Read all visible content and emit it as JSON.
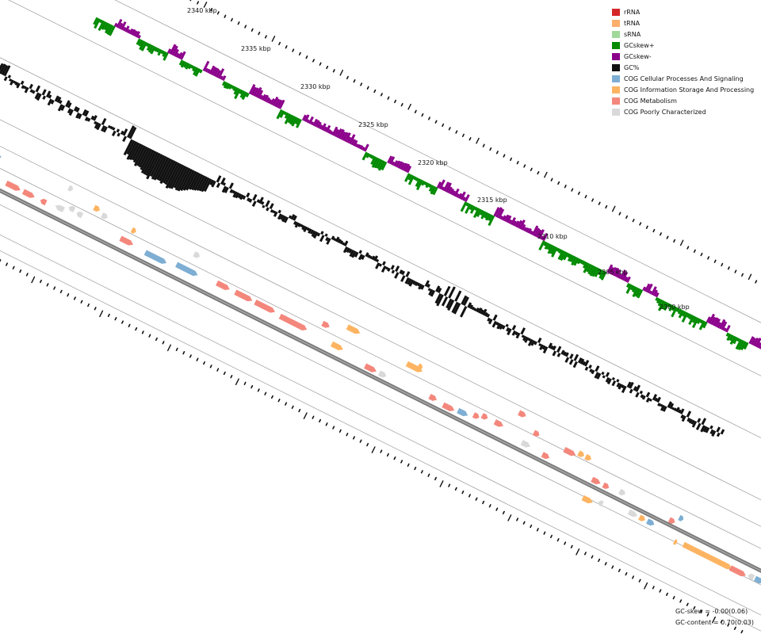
{
  "positions": {
    "ticks": [
      "2340 kbp",
      "2335 kbp",
      "2330 kbp",
      "2325 kbp",
      "2320 kbp",
      "2315 kbp",
      "2310 kbp",
      "2305 kbp",
      "2300 kbp"
    ]
  },
  "legend": [
    {
      "label": "rRNA",
      "color": "#d62728"
    },
    {
      "label": "tRNA",
      "color": "#fdae6b"
    },
    {
      "label": "sRNA",
      "color": "#a1d99b"
    },
    {
      "label": "GCskew+",
      "color": "#008a00"
    },
    {
      "label": "GCskew-",
      "color": "#8b008b"
    },
    {
      "label": "GC%",
      "color": "#111111"
    },
    {
      "label": "COG Cellular Processes And Signaling",
      "color": "#7eaed3"
    },
    {
      "label": "COG Information Storage And Processing",
      "color": "#fdb462"
    },
    {
      "label": "COG Metabolism",
      "color": "#f4877c"
    },
    {
      "label": "COG Poorly Characterized",
      "color": "#d9d9d9"
    }
  ],
  "stats": {
    "gc_skew": "GC-skew = -0.00(0.06)",
    "gc_content": "GC-content = 0.70(0.03)"
  }
}
